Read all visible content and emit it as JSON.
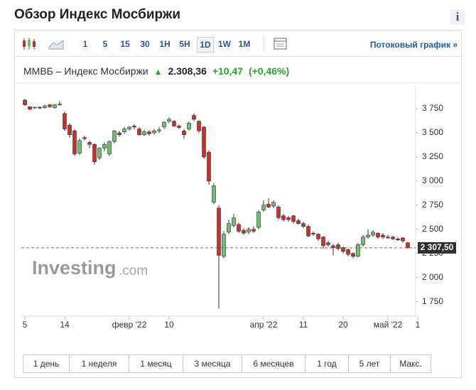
{
  "page_title": "Обзор Индекс Мосбиржи",
  "info_icon": "i",
  "toolbar": {
    "intervals": [
      "1",
      "5",
      "15",
      "30",
      "1H",
      "5H",
      "1D",
      "1W",
      "1M"
    ],
    "selected": "1D",
    "stream_link": "Потоковый график »"
  },
  "header": {
    "name": "ММВБ – Индекс Мосбиржи",
    "arrow": "▲",
    "price": "2.308,36",
    "change": "+10,47",
    "change_pct": "(+0,46%)"
  },
  "watermark": {
    "brand": "Investing",
    "suffix": ".com"
  },
  "ranges": [
    "1 день",
    "1 неделя",
    "1 месяц",
    "3 месяца",
    "6 месяцев",
    "1 год",
    "5 лет",
    "Макс."
  ],
  "chart_data": {
    "type": "candlestick",
    "categories": [
      "5",
      null,
      null,
      null,
      null,
      null,
      null,
      null,
      "14",
      null,
      null,
      null,
      null,
      null,
      null,
      null,
      null,
      null,
      null,
      null,
      null,
      "февр '22",
      null,
      null,
      null,
      null,
      null,
      null,
      null,
      "10",
      null,
      null,
      null,
      null,
      null,
      null,
      null,
      null,
      null,
      null,
      null,
      null,
      null,
      null,
      null,
      null,
      null,
      null,
      "апр '22",
      null,
      null,
      null,
      null,
      null,
      null,
      null,
      "11",
      null,
      null,
      null,
      null,
      null,
      null,
      null,
      "20",
      null,
      null,
      null,
      null,
      null,
      null,
      null,
      null,
      "май '22",
      null,
      null,
      null,
      null,
      null,
      "1"
    ],
    "open": [
      3840,
      3770,
      3760,
      3765,
      3760,
      3790,
      3760,
      3790,
      3700,
      3580,
      3520,
      3290,
      3450,
      3400,
      3380,
      3240,
      3340,
      3280,
      3410,
      3500,
      3510,
      3540,
      3570,
      3540,
      3480,
      3510,
      3500,
      3520,
      3560,
      3620,
      3620,
      3570,
      3520,
      3540,
      3680,
      3620,
      3560,
      3300,
      2780,
      2720,
      2220,
      2470,
      2540,
      2550,
      2490,
      2470,
      2500,
      2520,
      2700,
      2760,
      2740,
      2730,
      2640,
      2620,
      2640,
      2590,
      2560,
      2530,
      2460,
      2450,
      2420,
      2360,
      2330,
      2340,
      2310,
      2290,
      2250,
      2220,
      2340,
      2420,
      2440,
      2460,
      2440,
      2420,
      2420,
      2400,
      2410,
      2360,
      null,
      null
    ],
    "high": [
      3850,
      3775,
      3770,
      3775,
      3790,
      3800,
      3800,
      3830,
      3720,
      3600,
      3540,
      3440,
      3470,
      3420,
      3390,
      3350,
      3400,
      3420,
      3530,
      3520,
      3560,
      3570,
      3590,
      3560,
      3530,
      3530,
      3540,
      3560,
      3620,
      3660,
      3630,
      3590,
      3540,
      3620,
      3700,
      3630,
      3570,
      3320,
      2980,
      2750,
      2480,
      2600,
      2660,
      2570,
      2510,
      2520,
      2530,
      2700,
      2800,
      2820,
      2800,
      2750,
      2660,
      2640,
      2650,
      2610,
      2580,
      2550,
      2480,
      2460,
      2430,
      2380,
      2350,
      2360,
      2320,
      2300,
      2260,
      2360,
      2440,
      2500,
      2490,
      2470,
      2460,
      2440,
      2430,
      2420,
      2420,
      2370,
      null,
      null
    ],
    "low": [
      3780,
      3735,
      3750,
      3745,
      3750,
      3760,
      3750,
      3780,
      3520,
      3450,
      3260,
      3270,
      3420,
      3340,
      3170,
      3220,
      3310,
      3260,
      3390,
      3460,
      3490,
      3520,
      3540,
      3470,
      3470,
      3470,
      3480,
      3500,
      3540,
      3600,
      3560,
      3540,
      3440,
      3520,
      3620,
      3500,
      3230,
      2960,
      2760,
      1680,
      2200,
      2450,
      2520,
      2460,
      2440,
      2450,
      2460,
      2500,
      2680,
      2720,
      2720,
      2600,
      2580,
      2580,
      2560,
      2550,
      2510,
      2420,
      2430,
      2380,
      2300,
      2320,
      2230,
      2280,
      2250,
      2220,
      2200,
      2210,
      2320,
      2400,
      2420,
      2400,
      2400,
      2400,
      2390,
      2380,
      2360,
      2300,
      null,
      null
    ],
    "close": [
      3790,
      3745,
      3765,
      3755,
      3780,
      3770,
      3790,
      3800,
      3540,
      3480,
      3280,
      3420,
      3440,
      3380,
      3200,
      3340,
      3380,
      3410,
      3520,
      3480,
      3540,
      3560,
      3560,
      3480,
      3510,
      3490,
      3520,
      3530,
      3610,
      3640,
      3570,
      3555,
      3480,
      3600,
      3640,
      3520,
      3250,
      3000,
      2950,
      2230,
      2450,
      2560,
      2620,
      2480,
      2460,
      2500,
      2480,
      2680,
      2750,
      2730,
      2780,
      2620,
      2600,
      2600,
      2580,
      2560,
      2530,
      2430,
      2450,
      2400,
      2330,
      2340,
      2310,
      2300,
      2270,
      2240,
      2220,
      2340,
      2420,
      2440,
      2470,
      2420,
      2420,
      2410,
      2400,
      2390,
      2380,
      2307.5,
      null,
      null
    ],
    "up_color": "#6dbf6d",
    "down_color": "#c9302c",
    "ylim": [
      1600,
      3993
    ],
    "yticks": [
      {
        "value": 1750,
        "label": "1 750"
      },
      {
        "value": 2000,
        "label": "2 000"
      },
      {
        "value": 2250,
        "label": "2 250"
      },
      {
        "value": 2500,
        "label": "2 500"
      },
      {
        "value": 2750,
        "label": "2 750"
      },
      {
        "value": 3000,
        "label": "3 000"
      },
      {
        "value": 3250,
        "label": "3 250"
      },
      {
        "value": 3500,
        "label": "3 500"
      },
      {
        "value": 3750,
        "label": "3 750"
      }
    ],
    "last_price": {
      "value": 2307.5,
      "label": "2 307,50"
    }
  }
}
